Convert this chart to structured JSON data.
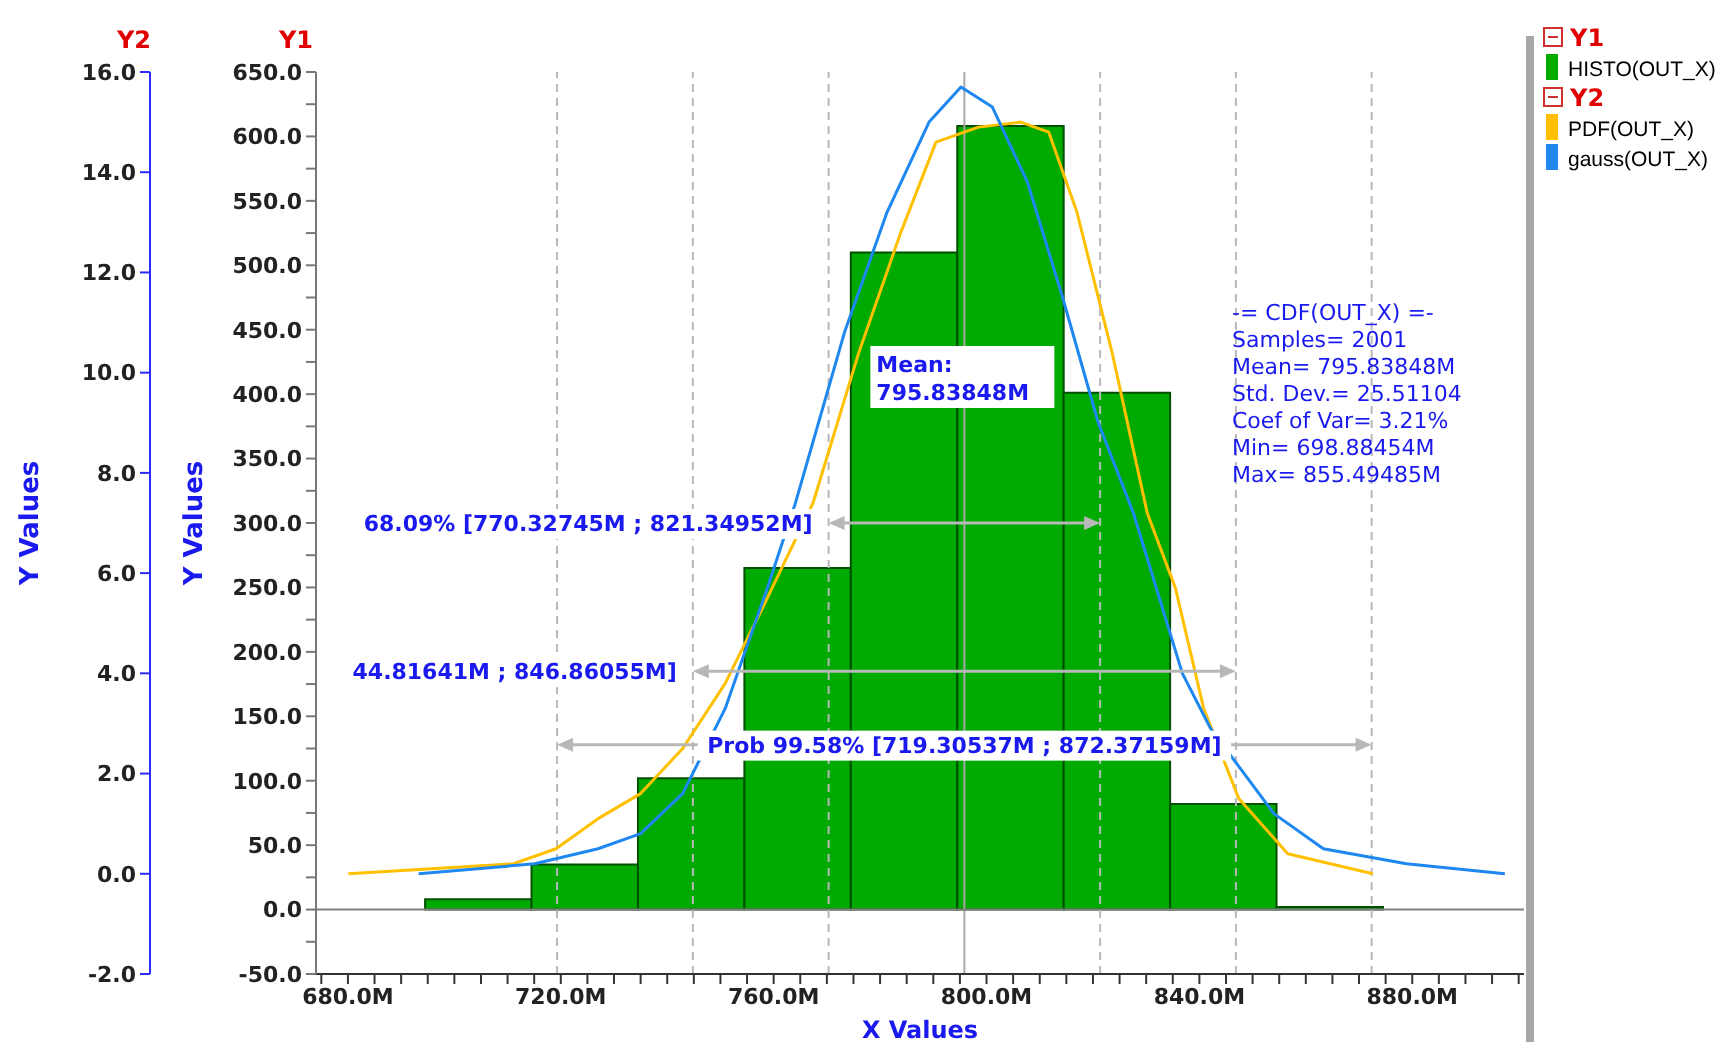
{
  "chart_data": {
    "type": "histogram",
    "xlabel": "X Values",
    "ylabel": "Y Values",
    "y2label": "Y Values",
    "annotations": [
      "Y1",
      "Y2",
      "-= CDF(OUT_X) =-",
      "Samples= 2001",
      "Mean= 795.83848M",
      "Std. Dev.= 25.51104",
      "Coef of Var= 3.21%",
      "Min= 698.88454M",
      "Max= 855.49485M",
      {
        "text": "68.09% [770.32745M ; 821.34952M]",
        "x": 770.32745,
        "y": 300
      },
      {
        "text": "44.81641M ; 846.86055M]",
        "x": 744.81641,
        "y": 185
      },
      {
        "text": "Prob 99.58% [719.30537M ; 872.37159M]",
        "x": 795.84,
        "y": 128
      }
    ],
    "bins": [
      694.5,
      714.5,
      734.5,
      754.5,
      774.5,
      794.5,
      814.5,
      834.5,
      854.5,
      874.5
    ],
    "series": [
      {
        "name": "HISTO(OUT_X)",
        "color": "#00aa00",
        "values": [
          8,
          35,
          102,
          265,
          510,
          608,
          401,
          82,
          2
        ]
      },
      {
        "name": "PDF(OUT_X)",
        "type": "line",
        "axis": "y2",
        "color": "#ffc000",
        "x": [
          680.1,
          711.1,
          719.1,
          727.0,
          735.0,
          742.9,
          750.9,
          758.8,
          767.4,
          776.0,
          783.9,
          790.5,
          798.5,
          806.4,
          811.7,
          817.0,
          823.6,
          830.2,
          835.5,
          840.8,
          847.4,
          856.6,
          872.6
        ],
        "values": [
          0.0,
          0.2,
          0.5,
          1.1,
          1.6,
          2.5,
          3.8,
          5.5,
          7.4,
          10.4,
          12.8,
          14.6,
          14.9,
          15.0,
          14.8,
          13.2,
          10.4,
          7.2,
          5.7,
          3.3,
          1.5,
          0.4,
          0.0
        ]
      },
      {
        "name": "gauss(OUT_X)",
        "type": "line",
        "axis": "y2",
        "color": "#1e88f0",
        "x": [
          693.3,
          715.1,
          727.0,
          735.0,
          742.9,
          750.9,
          758.8,
          764.1,
          773.3,
          781.3,
          789.2,
          795.2,
          801.1,
          807.7,
          814.3,
          821.0,
          827.6,
          836.8,
          842.1,
          854.0,
          863.3,
          878.9,
          897.4
        ],
        "values": [
          0.0,
          0.2,
          0.5,
          0.8,
          1.6,
          3.3,
          5.7,
          7.4,
          10.8,
          13.2,
          15.0,
          15.7,
          15.3,
          13.8,
          11.5,
          9.0,
          7.2,
          4.0,
          2.9,
          1.2,
          0.5,
          0.2,
          0.0
        ]
      }
    ],
    "xlim": [
      674,
      901
    ],
    "ylim": [
      -50,
      650
    ],
    "y2lim": [
      -2,
      16
    ],
    "xticks": [
      {
        "value": 675,
        "label": null
      },
      {
        "value": 680,
        "label": "680.0M"
      },
      {
        "value": 685,
        "label": null
      },
      {
        "value": 690,
        "label": null
      },
      {
        "value": 695,
        "label": null
      },
      {
        "value": 700,
        "label": null
      },
      {
        "value": 705,
        "label": null
      },
      {
        "value": 710,
        "label": null
      },
      {
        "value": 715,
        "label": null
      },
      {
        "value": 720,
        "label": "720.0M"
      },
      {
        "value": 725,
        "label": null
      },
      {
        "value": 730,
        "label": null
      },
      {
        "value": 735,
        "label": null
      },
      {
        "value": 740,
        "label": null
      },
      {
        "value": 745,
        "label": null
      },
      {
        "value": 750,
        "label": null
      },
      {
        "value": 755,
        "label": null
      },
      {
        "value": 760,
        "label": "760.0M"
      },
      {
        "value": 765,
        "label": null
      },
      {
        "value": 770,
        "label": null
      },
      {
        "value": 775,
        "label": null
      },
      {
        "value": 780,
        "label": null
      },
      {
        "value": 785,
        "label": null
      },
      {
        "value": 790,
        "label": null
      },
      {
        "value": 795,
        "label": null
      },
      {
        "value": 800,
        "label": "800.0M"
      },
      {
        "value": 805,
        "label": null
      },
      {
        "value": 810,
        "label": null
      },
      {
        "value": 815,
        "label": null
      },
      {
        "value": 820,
        "label": null
      },
      {
        "value": 825,
        "label": null
      },
      {
        "value": 830,
        "label": null
      },
      {
        "value": 835,
        "label": null
      },
      {
        "value": 840,
        "label": "840.0M"
      },
      {
        "value": 845,
        "label": null
      },
      {
        "value": 850,
        "label": null
      },
      {
        "value": 855,
        "label": null
      },
      {
        "value": 860,
        "label": null
      },
      {
        "value": 865,
        "label": null
      },
      {
        "value": 870,
        "label": null
      },
      {
        "value": 875,
        "label": null
      },
      {
        "value": 880,
        "label": "880.0M"
      },
      {
        "value": 885,
        "label": null
      },
      {
        "value": 890,
        "label": null
      },
      {
        "value": 895,
        "label": null
      },
      {
        "value": 900,
        "label": null
      }
    ],
    "yticks": [
      {
        "value": -50,
        "label": "-50.0"
      },
      {
        "value": -25,
        "label": null
      },
      {
        "value": 0,
        "label": "0.0"
      },
      {
        "value": 25,
        "label": null
      },
      {
        "value": 50,
        "label": "50.0"
      },
      {
        "value": 75,
        "label": null
      },
      {
        "value": 100,
        "label": "100.0"
      },
      {
        "value": 125,
        "label": null
      },
      {
        "value": 150,
        "label": "150.0"
      },
      {
        "value": 175,
        "label": null
      },
      {
        "value": 200,
        "label": "200.0"
      },
      {
        "value": 225,
        "label": null
      },
      {
        "value": 250,
        "label": "250.0"
      },
      {
        "value": 275,
        "label": null
      },
      {
        "value": 300,
        "label": "300.0"
      },
      {
        "value": 325,
        "label": null
      },
      {
        "value": 350,
        "label": "350.0"
      },
      {
        "value": 375,
        "label": null
      },
      {
        "value": 400,
        "label": "400.0"
      },
      {
        "value": 425,
        "label": null
      },
      {
        "value": 450,
        "label": "450.0"
      },
      {
        "value": 475,
        "label": null
      },
      {
        "value": 500,
        "label": "500.0"
      },
      {
        "value": 525,
        "label": null
      },
      {
        "value": 550,
        "label": "550.0"
      },
      {
        "value": 575,
        "label": null
      },
      {
        "value": 600,
        "label": "600.0"
      },
      {
        "value": 625,
        "label": null
      },
      {
        "value": 650,
        "label": "650.0"
      }
    ],
    "y2ticks": [
      {
        "value": -2,
        "label": "-2.0"
      },
      {
        "value": 0,
        "label": "0.0"
      },
      {
        "value": 2,
        "label": "2.0"
      },
      {
        "value": 4,
        "label": "4.0"
      },
      {
        "value": 6,
        "label": "6.0"
      },
      {
        "value": 8,
        "label": "8.0"
      },
      {
        "value": 10,
        "label": "10.0"
      },
      {
        "value": 12,
        "label": "12.0"
      },
      {
        "value": 14,
        "label": "14.0"
      },
      {
        "value": 16,
        "label": "16.0"
      }
    ],
    "ref_lines": [
      {
        "axis": "x",
        "value": 795.83848,
        "label": "Mean: 795.83848M",
        "color": "#a8a8a8"
      },
      {
        "axis": "y",
        "value": 0,
        "color": "#808080"
      },
      {
        "axis": "x",
        "value": 770.32745,
        "color": "#b8b8b8",
        "line_style": "dashed"
      },
      {
        "axis": "x",
        "value": 821.34952,
        "color": "#b8b8b8",
        "line_style": "dashed"
      },
      {
        "axis": "x",
        "value": 744.81641,
        "color": "#b8b8b8",
        "line_style": "dashed"
      },
      {
        "axis": "x",
        "value": 846.86055,
        "color": "#b8b8b8",
        "line_style": "dashed"
      },
      {
        "axis": "x",
        "value": 719.30537,
        "color": "#b8b8b8",
        "line_style": "dashed"
      },
      {
        "axis": "x",
        "value": 872.37159,
        "color": "#b8b8b8",
        "line_style": "dashed"
      }
    ],
    "legend": "top right"
  }
}
